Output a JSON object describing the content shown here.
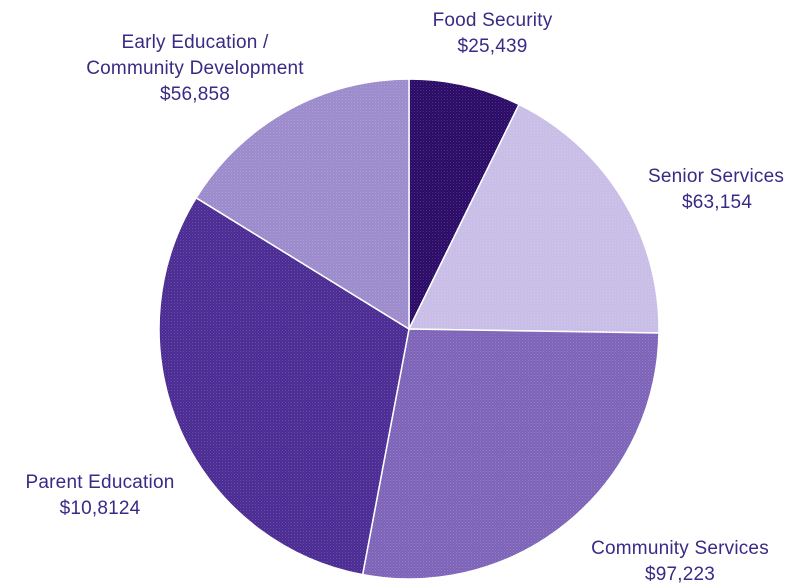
{
  "chart_data": {
    "type": "pie",
    "title": "",
    "slices": [
      {
        "label": "Food Security",
        "value_text": "$25,439",
        "value": 25439,
        "color": "#2a0a66"
      },
      {
        "label": "Senior Services",
        "value_text": "$63,154",
        "value": 63154,
        "color": "#c8bde6"
      },
      {
        "label": "Community Services",
        "value_text": "$97,223",
        "value": 97223,
        "color": "#7d63b8"
      },
      {
        "label": "Parent Education",
        "value_text": "$10,8124",
        "value": 108124,
        "color": "#4a2b93"
      },
      {
        "label": "Early Education / Community Development",
        "label_lines": [
          "Early Education /",
          "Community Development"
        ],
        "value_text": "$56,858",
        "value": 56858,
        "color": "#9c8bcc"
      }
    ]
  }
}
